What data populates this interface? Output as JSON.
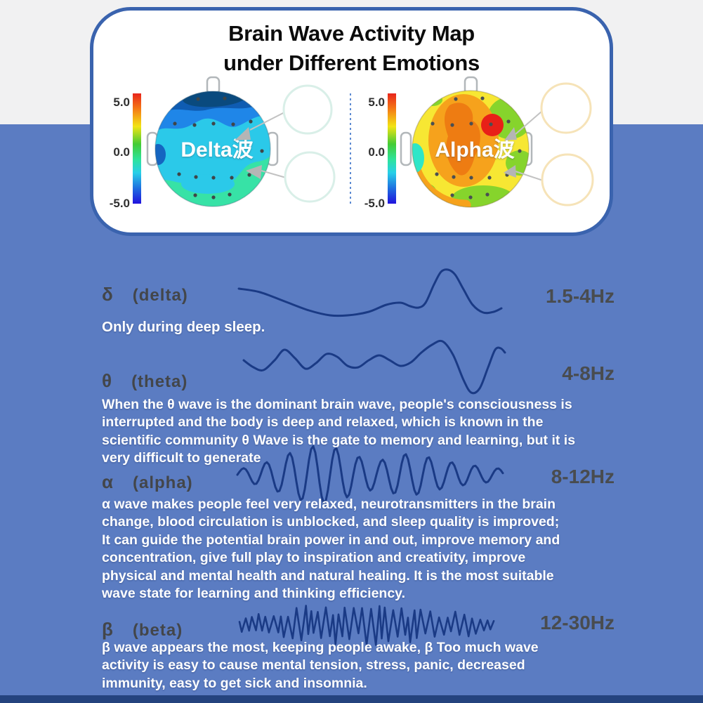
{
  "colors": {
    "background_top": "#f1f1f2",
    "background_main": "#5b7cc2",
    "background_bottom": "#24437e",
    "card_border": "#3a63ae",
    "wave": "#1a3a85",
    "label_text": "#45474a",
    "body_text": "#ffffff",
    "delta_palette": [
      "#0a4a7e",
      "#0f5cb2",
      "#1f86e8",
      "#2bc9e9",
      "#37e2a6"
    ],
    "alpha_palette": [
      "#e82018",
      "#ee7c12",
      "#f6a21c",
      "#f7e733",
      "#86d42c",
      "#2ee6c8"
    ]
  },
  "card": {
    "title_line1": "Brain Wave Activity Map",
    "title_line2": "under Different Emotions",
    "maps": [
      {
        "label": "Delta波",
        "colorbar_max": "5.0",
        "colorbar_mid": "0.0",
        "colorbar_min": "-5.0"
      },
      {
        "label": "Alpha波",
        "colorbar_max": "5.0",
        "colorbar_mid": "0.0",
        "colorbar_min": "-5.0"
      }
    ]
  },
  "bands": [
    {
      "glyph": "δ",
      "name": "(delta)",
      "freq": "1.5-4Hz",
      "description": "Only during deep sleep."
    },
    {
      "glyph": "θ",
      "name": "(theta)",
      "freq": "4-8Hz",
      "description": "When the θ wave is the dominant brain wave, people's consciousness is\ninterrupted and the body is deep and relaxed, which is known in the\nscientific community θ Wave is the gate to memory and learning, but it is\nvery difficult to generate"
    },
    {
      "glyph": "α",
      "name": "(alpha)",
      "freq": "8-12Hz",
      "description": "α wave makes people feel very relaxed, neurotransmitters in the brain\nchange, blood circulation is unblocked, and sleep quality is improved;\nIt can guide the potential brain power in and out, improve memory and\nconcentration, give full play to inspiration and creativity, improve\nphysical and mental health and natural healing. It is the most suitable\nwave state for learning and thinking efficiency."
    },
    {
      "glyph": "β",
      "name": "(beta)",
      "freq": "12-30Hz",
      "description": "β wave appears the most, keeping people awake, β Too much wave\nactivity is easy to cause mental tension, stress, panic, decreased\nimmunity, easy to get sick and insomnia."
    }
  ]
}
